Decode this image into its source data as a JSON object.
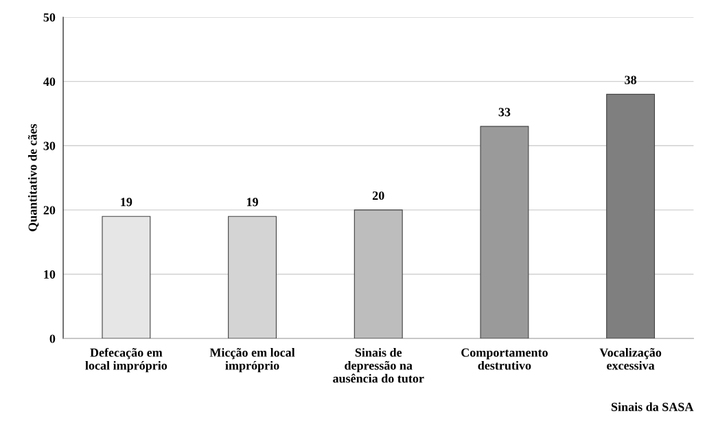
{
  "chart_data": {
    "type": "bar",
    "xlabel": "Sinais da SASA",
    "ylabel": "Quantitativo de cães",
    "categories": [
      "Defecação em\nlocal impróprio",
      "Micção em local\nimpróprio",
      "Sinais de\ndepressão na\nausência do tutor",
      "Comportamento\ndestrutivo",
      "Vocalização\nexcessiva"
    ],
    "values": [
      19,
      19,
      20,
      33,
      38
    ],
    "colors": [
      "#e6e6e6",
      "#d4d4d4",
      "#bdbdbd",
      "#9a9a9a",
      "#7f7f7f"
    ],
    "ylim": [
      0,
      50
    ],
    "yticks": [
      0,
      10,
      20,
      30,
      40,
      50
    ],
    "grid": "y",
    "data_labels": true
  }
}
